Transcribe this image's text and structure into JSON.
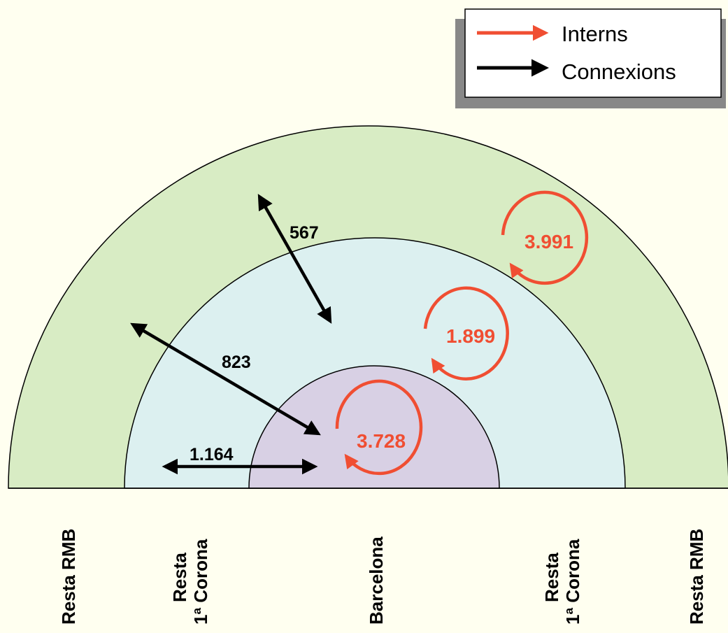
{
  "legend": {
    "interns_label": "Interns",
    "connexions_label": "Connexions",
    "interns_color": "#f04e32",
    "connexions_color": "#000000"
  },
  "colors": {
    "outer_ring": "#d8ecc4",
    "middle_ring": "#dcf0f0",
    "inner_ring": "#d8d0e4",
    "background": "#fffff0"
  },
  "connexions": {
    "rmb_core": "567",
    "rmb_barcelona": "823",
    "corona_barcelona": "1.164"
  },
  "interns": {
    "rmb": "3.991",
    "corona": "1.899",
    "barcelona": "3.728"
  },
  "zones": {
    "left_rmb": "Resta RMB",
    "left_corona_line1": "Resta",
    "left_corona_line2": "1ª Corona",
    "barcelona": "Barcelona",
    "right_corona_line1": "Resta",
    "right_corona_line2": "1ª Corona",
    "right_rmb": "Resta RMB"
  }
}
